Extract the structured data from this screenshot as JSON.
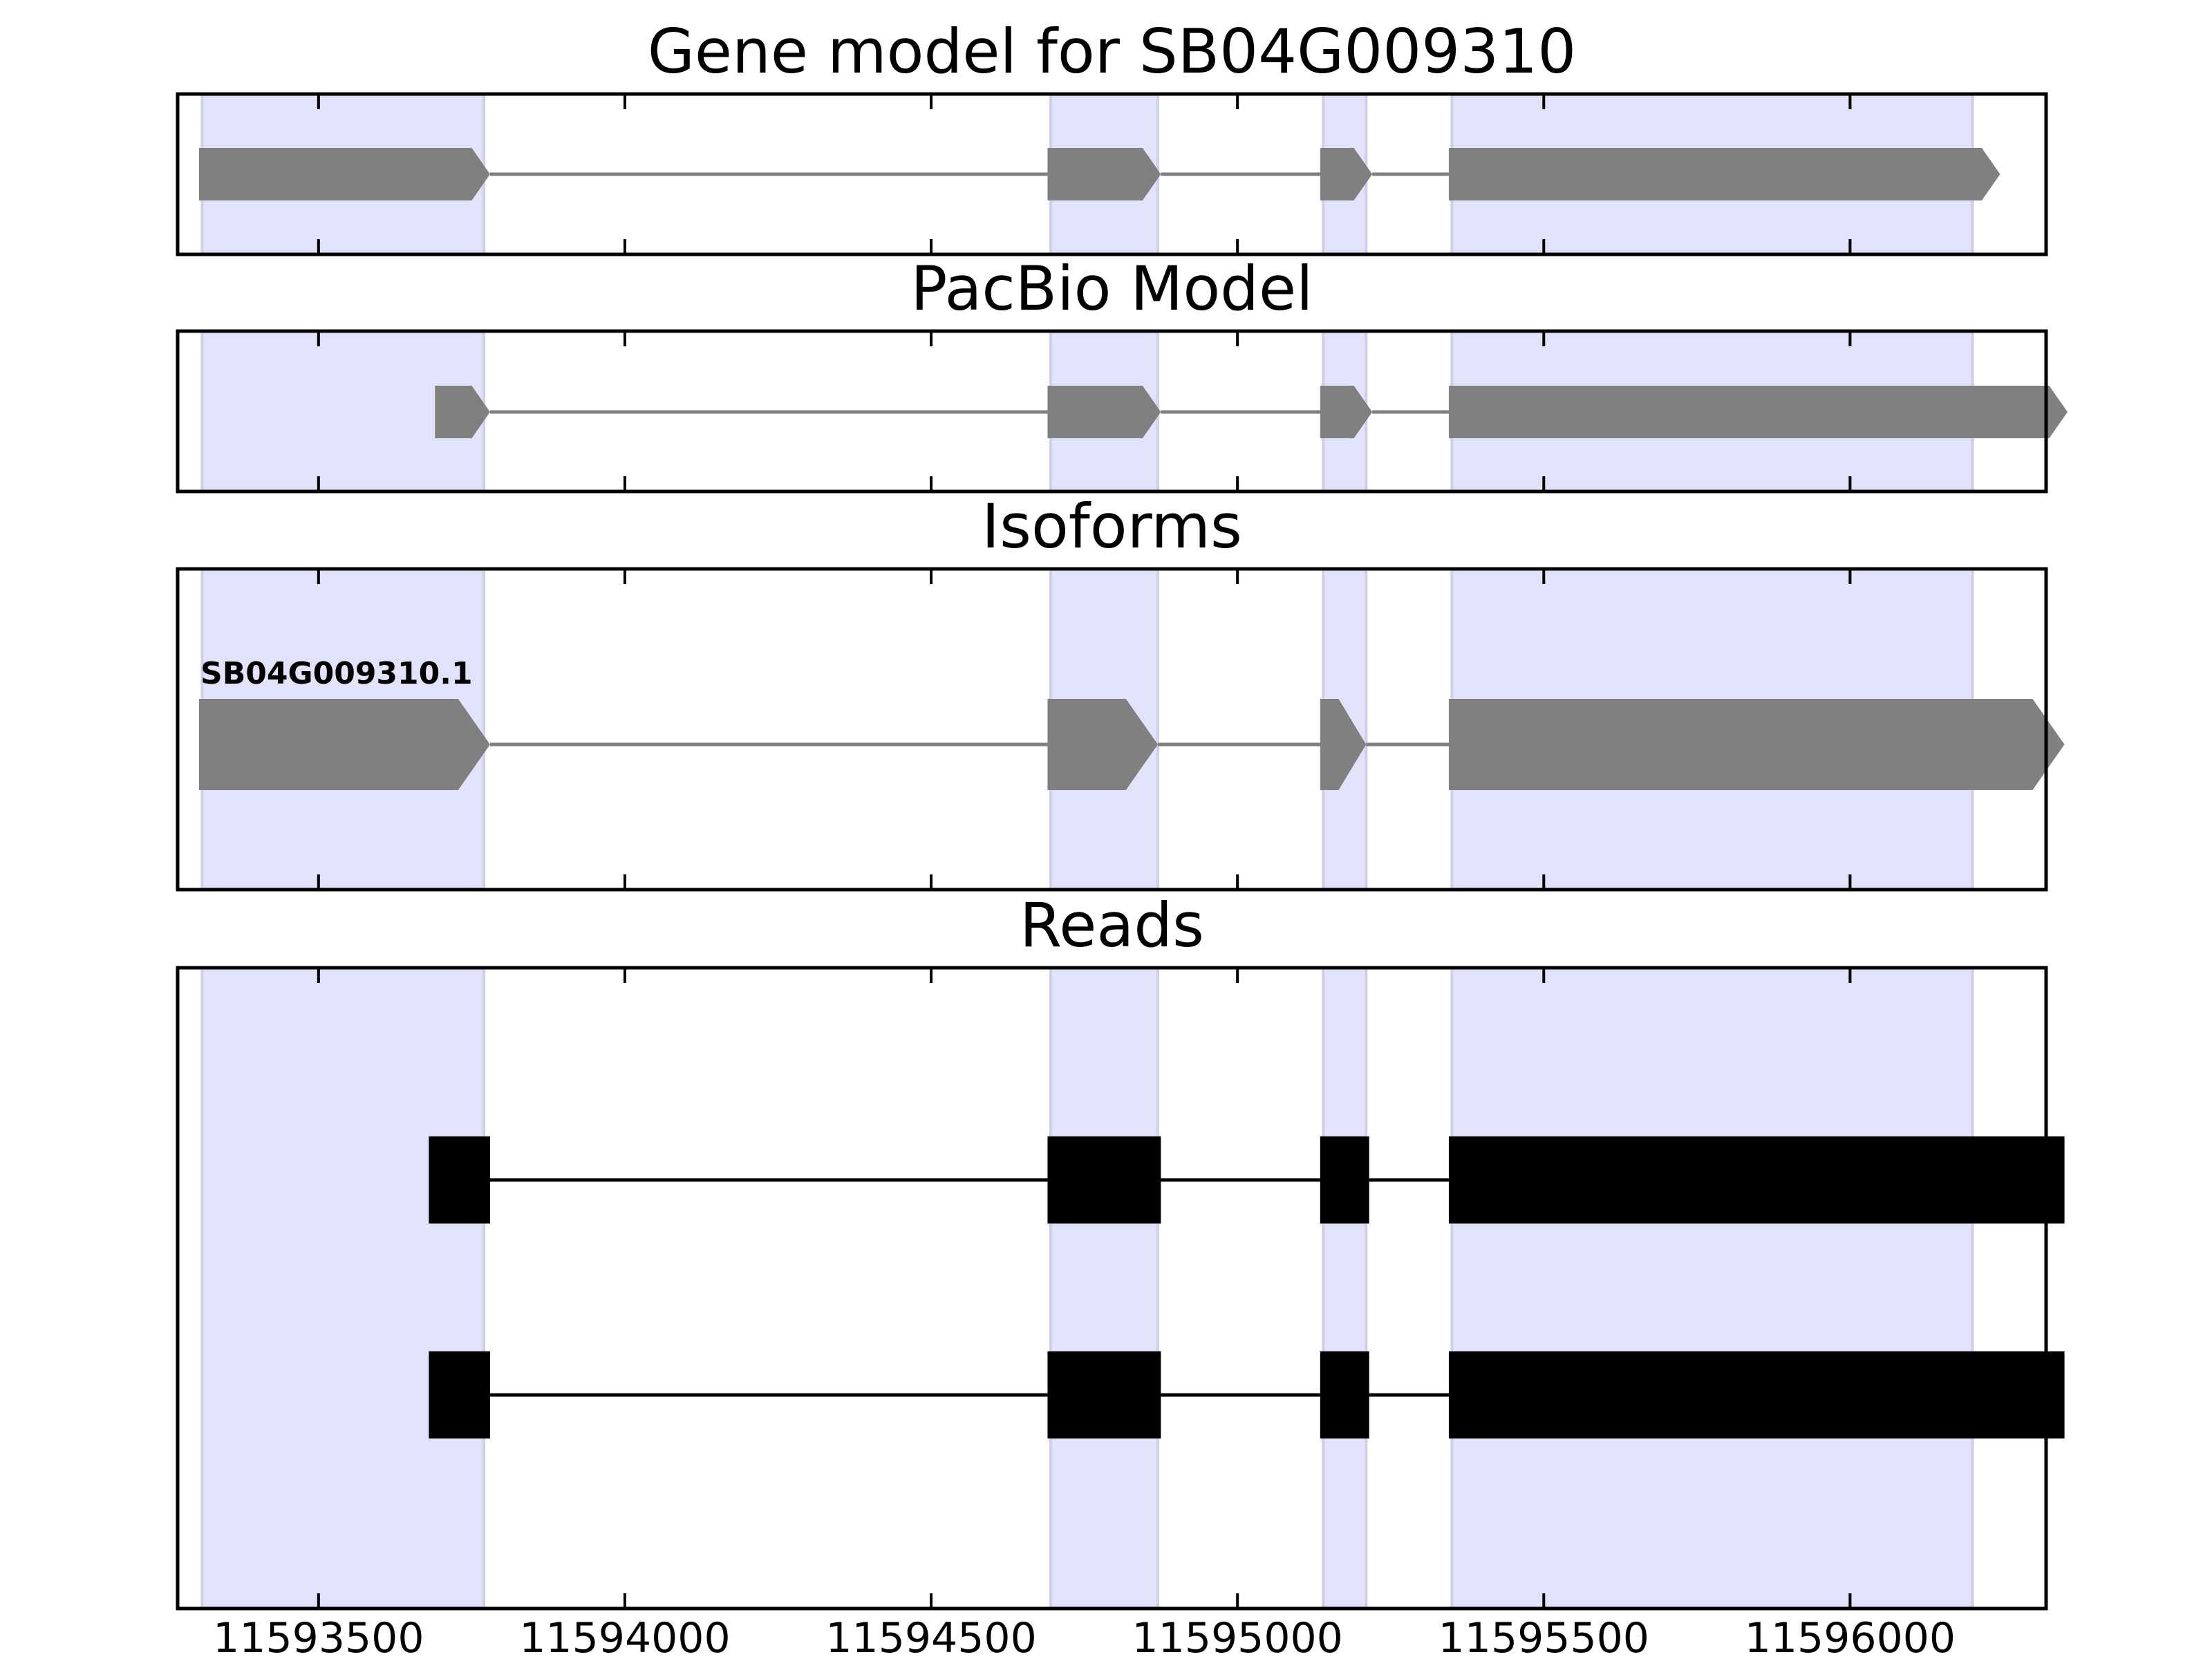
{
  "chart_data": {
    "type": "gene-track",
    "xlim": [
      11593270,
      11596320
    ],
    "x_ticks": [
      11593500,
      11594000,
      11594500,
      11595000,
      11595500,
      11596000
    ],
    "x_tick_labels": [
      "11593500",
      "11594000",
      "11594500",
      "11595000",
      "11595500",
      "11596000"
    ],
    "strand": "+",
    "highlight_regions": [
      [
        11593310,
        11593770
      ],
      [
        11594695,
        11594870
      ],
      [
        11595140,
        11595210
      ],
      [
        11595350,
        11596200
      ]
    ],
    "panels": [
      {
        "id": "gene-model",
        "title": "Gene model for SB04G009310",
        "feature_style": "arrow",
        "tracks": [
          {
            "label": "",
            "exons": [
              [
                11593305,
                11593780
              ],
              [
                11594690,
                11594875
              ],
              [
                11595135,
                11595220
              ],
              [
                11595345,
                11596245
              ]
            ]
          }
        ]
      },
      {
        "id": "pacbio-model",
        "title": "PacBio Model",
        "feature_style": "arrow",
        "tracks": [
          {
            "label": "",
            "exons": [
              [
                11593690,
                11593780
              ],
              [
                11594690,
                11594875
              ],
              [
                11595135,
                11595220
              ],
              [
                11595345,
                11596355
              ]
            ]
          }
        ]
      },
      {
        "id": "isoforms",
        "title": "Isoforms",
        "feature_style": "arrow",
        "tracks": [
          {
            "label": "SB04G009310.1",
            "exons": [
              [
                11593305,
                11593780
              ],
              [
                11594690,
                11594870
              ],
              [
                11595135,
                11595210
              ],
              [
                11595345,
                11596350
              ]
            ]
          }
        ]
      },
      {
        "id": "reads",
        "title": "Reads",
        "feature_style": "block",
        "tracks": [
          {
            "label": "",
            "exons": [
              [
                11593680,
                11593780
              ],
              [
                11594690,
                11594875
              ],
              [
                11595135,
                11595215
              ],
              [
                11595345,
                11596350
              ]
            ]
          },
          {
            "label": "",
            "exons": [
              [
                11593680,
                11593780
              ],
              [
                11594690,
                11594875
              ],
              [
                11595135,
                11595215
              ],
              [
                11595345,
                11596350
              ]
            ]
          }
        ]
      }
    ],
    "colors": {
      "highlight": "#e2e2fa",
      "highlight_edge": "#cfcfec",
      "model_exon": "#808080",
      "model_intron": "#808080",
      "read_exon": "#000000",
      "read_intron": "#000000",
      "frame": "#000000"
    },
    "grid": false,
    "legend": "none"
  }
}
